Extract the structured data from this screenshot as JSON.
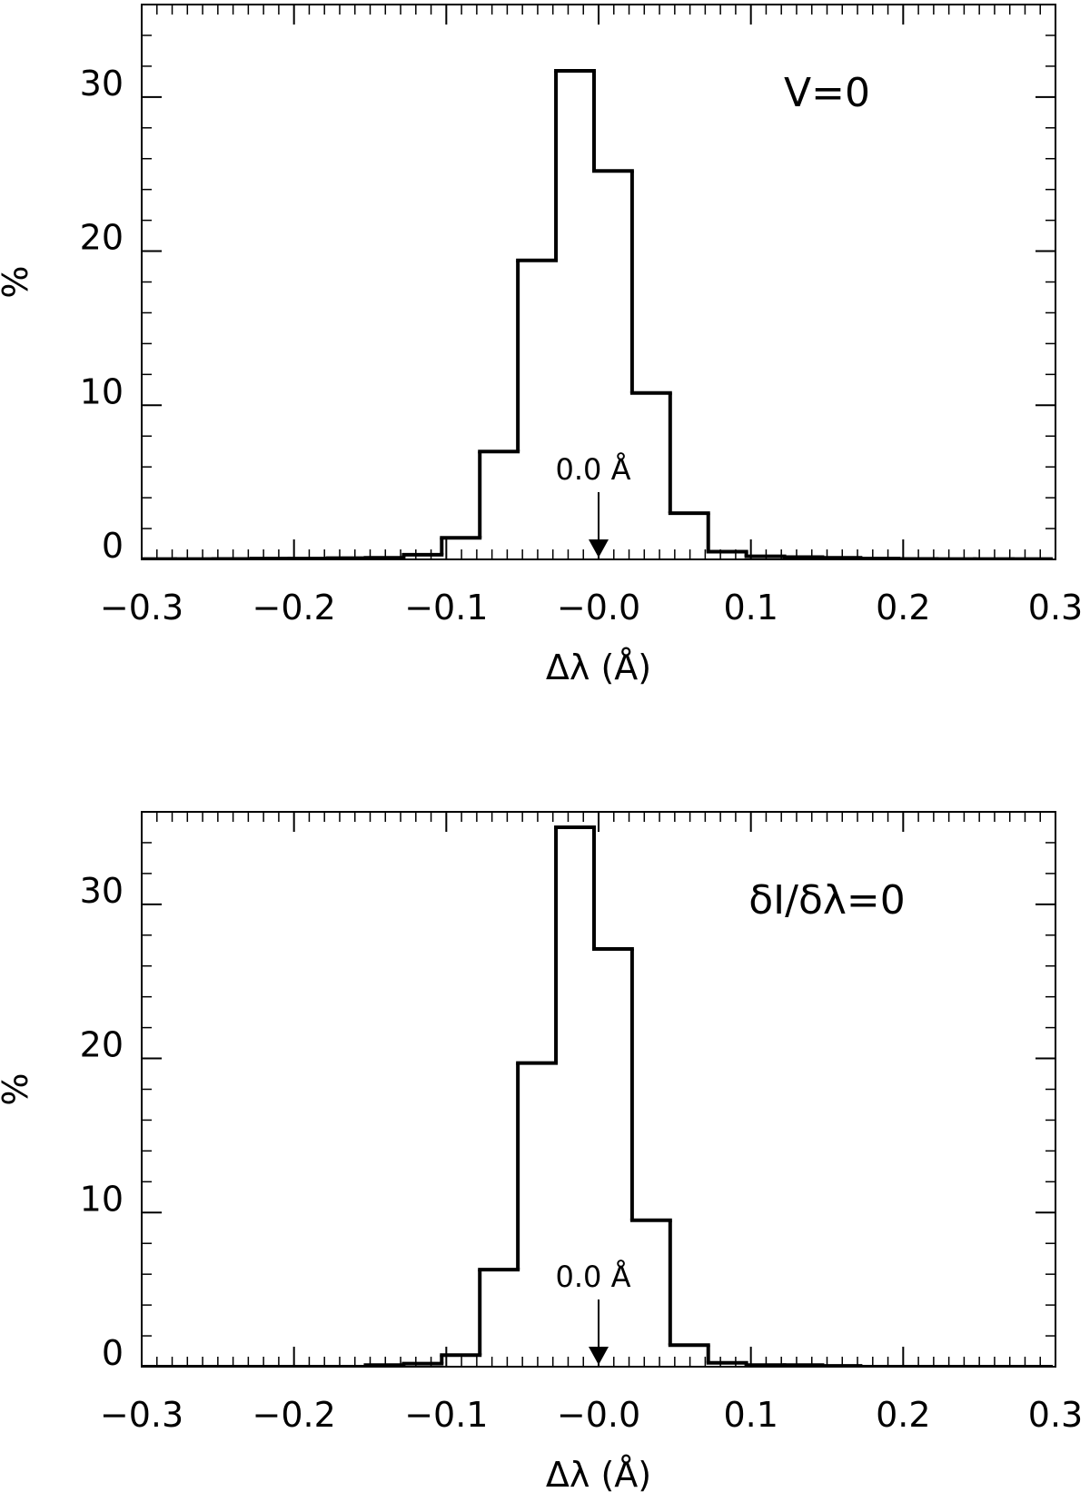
{
  "chart_data": [
    {
      "type": "histogram",
      "annotation": "V=0",
      "arrow": {
        "label": "0.0 Å",
        "x": 0
      },
      "x_label": "Δλ (Å)",
      "y_label": "%",
      "bins": [
        -0.303,
        -0.278,
        -0.253,
        -0.228,
        -0.203,
        -0.178,
        -0.153,
        -0.128,
        -0.103,
        -0.078,
        -0.053,
        -0.028,
        -0.003,
        0.022,
        0.047,
        0.072,
        0.097,
        0.122,
        0.147,
        0.172,
        0.197,
        0.222,
        0.247,
        0.272,
        0.297
      ],
      "values": [
        0.02,
        0.02,
        0.03,
        0.05,
        0.05,
        0.08,
        0.1,
        0.3,
        1.4,
        7.0,
        19.4,
        31.7,
        25.2,
        10.8,
        3.0,
        0.5,
        0.2,
        0.15,
        0.1,
        0.05,
        0.03,
        0.02,
        0.02,
        0.02
      ],
      "color": "#000000",
      "xlim": [
        -0.3,
        0.3
      ],
      "xticks": [
        {
          "value": -0.3,
          "label": "−0.3"
        },
        {
          "value": -0.2,
          "label": "−0.2"
        },
        {
          "value": -0.1,
          "label": "−0.1"
        },
        {
          "value": 0,
          "label": "−0.0"
        },
        0.1,
        0.2,
        0.3
      ],
      "ylim": [
        0,
        36
      ],
      "yticks": [
        0,
        10,
        20,
        30
      ],
      "x_minor_divisions": 10,
      "y_minor_divisions": 5
    },
    {
      "type": "histogram",
      "annotation": "δI/δλ=0",
      "arrow": {
        "label": "0.0 Å",
        "x": 0
      },
      "x_label": "Δλ (Å)",
      "y_label": "%",
      "bins": [
        -0.303,
        -0.278,
        -0.253,
        -0.228,
        -0.203,
        -0.178,
        -0.153,
        -0.128,
        -0.103,
        -0.078,
        -0.053,
        -0.028,
        -0.003,
        0.022,
        0.047,
        0.072,
        0.097,
        0.122,
        0.147,
        0.172,
        0.197,
        0.222,
        0.247,
        0.272,
        0.297
      ],
      "values": [
        0,
        0,
        0,
        0,
        0,
        0,
        0.1,
        0.2,
        0.75,
        6.3,
        19.7,
        35.0,
        27.1,
        9.5,
        1.4,
        0.25,
        0.1,
        0.1,
        0.05,
        0,
        0,
        0,
        0,
        0
      ],
      "color": "#000000",
      "xlim": [
        -0.3,
        0.3
      ],
      "xticks": [
        {
          "value": -0.3,
          "label": "−0.3"
        },
        {
          "value": -0.2,
          "label": "−0.2"
        },
        {
          "value": -0.1,
          "label": "−0.1"
        },
        {
          "value": 0,
          "label": "−0.0"
        },
        0.1,
        0.2,
        0.3
      ],
      "ylim": [
        0,
        36
      ],
      "yticks": [
        0,
        10,
        20,
        30
      ],
      "x_minor_divisions": 10,
      "y_minor_divisions": 5
    }
  ]
}
